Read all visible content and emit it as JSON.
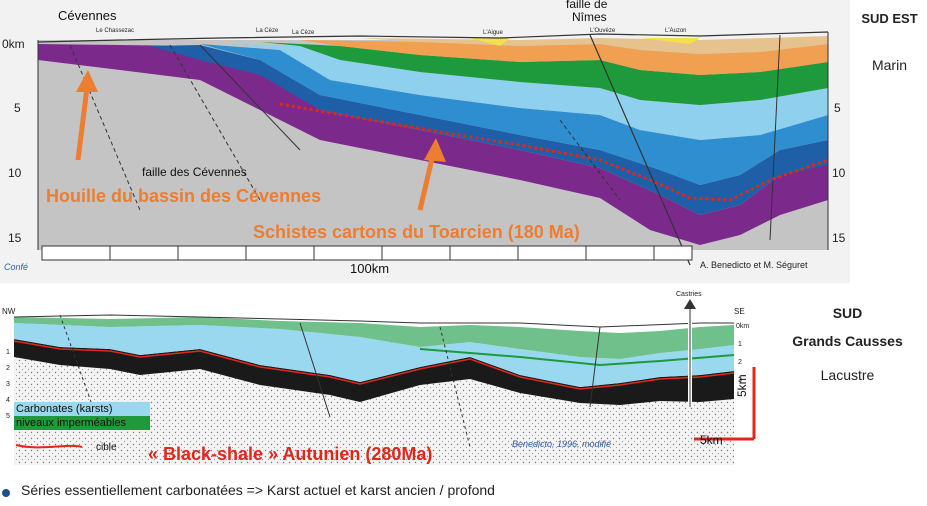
{
  "top": {
    "places": {
      "cevennes": "Cévennes",
      "faille_nimes_line1": "faille de",
      "faille_nimes_line2": "Nîmes",
      "faille_cevennes": "faille des Cévennes"
    },
    "small_labels": [
      "Le Chassezac",
      "La Cèze",
      "La Cèze",
      "L'Aigue",
      "L'Ouvèze",
      "L'Auzon"
    ],
    "depth_left": [
      "0km",
      "5",
      "10",
      "15"
    ],
    "depth_right": [
      "5",
      "10",
      "15"
    ],
    "scale_label": "100km",
    "credit": "A. Benedicto et M. Séguret",
    "conf": "Confé",
    "annotation_coal": "Houille du bassin des Cévennes",
    "annotation_toarcien": "Schistes cartons du Toarcien (180 Ma)"
  },
  "side": {
    "top_title": "SUD EST",
    "top_sub": "Marin",
    "bottom_title1": "SUD",
    "bottom_title2": "Grands Causses",
    "bottom_sub": "Lacustre"
  },
  "bottom": {
    "nw": "NW",
    "se": "SE",
    "castries": "Castries",
    "depth_labels": [
      "1",
      "2",
      "3",
      "4",
      "5"
    ],
    "right_labels": [
      "0km",
      "1",
      "2",
      "3"
    ],
    "legend": {
      "carbonates": "Carbonates (karsts)",
      "impermeables": "niveaux imperméables",
      "cible": "cible"
    },
    "credit": "Benedicto, 1996, modifié",
    "scale_h": "5km",
    "scale_v": "5km",
    "annotation_black_shale": "« Black-shale » Autunien (280Ma)"
  },
  "footer": {
    "bullet_text": "Séries essentiellement carbonatées => Karst actuel et karst ancien / profond"
  },
  "colors": {
    "orange": "#ed7d31",
    "red": "#e0281a",
    "purple": "#7b2a8c",
    "dark_blue": "#1f5fa8",
    "blue": "#2f8ed0",
    "light_blue": "#8fd0ee",
    "green": "#1e9a3c",
    "tan": "#e2c08c",
    "grey": "#c8c8c8"
  }
}
